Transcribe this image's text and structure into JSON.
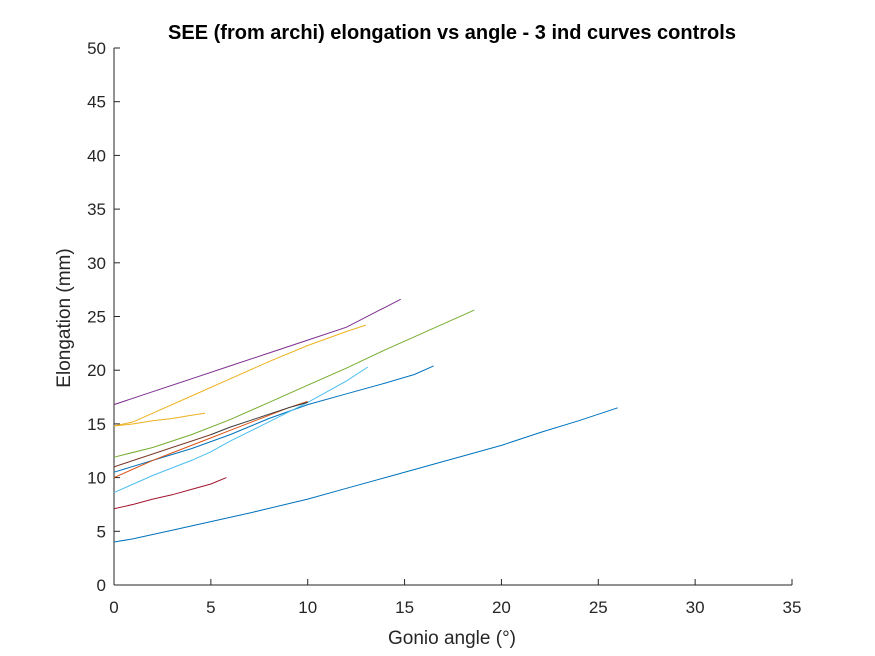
{
  "chart_data": {
    "type": "line",
    "title": "SEE (from archi) elongation vs angle - 3 ind curves controls",
    "xlabel": "Gonio angle (°)",
    "ylabel": "Elongation (mm)",
    "xlim": [
      0,
      35
    ],
    "ylim": [
      0,
      50
    ],
    "xticks": [
      "0",
      "5",
      "10",
      "15",
      "20",
      "25",
      "30",
      "35"
    ],
    "yticks": [
      "0",
      "5",
      "10",
      "15",
      "20",
      "25",
      "30",
      "35",
      "40",
      "45",
      "50"
    ],
    "grid": false,
    "series": [
      {
        "color": "#0072BD",
        "x": [
          0,
          1,
          2,
          3,
          5,
          7,
          10,
          12,
          14,
          16,
          18,
          20,
          22,
          24,
          26
        ],
        "y": [
          4.0,
          4.3,
          4.7,
          5.1,
          5.9,
          6.7,
          8.0,
          9.0,
          10.0,
          11.0,
          12.0,
          13.0,
          14.2,
          15.3,
          16.5
        ]
      },
      {
        "color": "#0072BD",
        "x": [
          0,
          2,
          4,
          6,
          8,
          10,
          12,
          14,
          15.5,
          16.5
        ],
        "y": [
          10.5,
          11.6,
          12.7,
          14.0,
          15.5,
          16.8,
          17.8,
          18.8,
          19.6,
          20.4
        ]
      },
      {
        "color": "#D95319",
        "x": [
          0,
          1,
          2,
          3,
          4,
          5,
          6,
          7,
          8,
          9,
          10
        ],
        "y": [
          10.0,
          10.8,
          11.6,
          12.3,
          13.0,
          13.7,
          14.4,
          15.1,
          15.8,
          16.5,
          17.1
        ]
      },
      {
        "color": "#EDB120",
        "x": [
          0,
          1,
          2,
          4,
          6,
          8,
          10,
          12,
          13
        ],
        "y": [
          14.8,
          15.2,
          16.0,
          17.6,
          19.2,
          20.8,
          22.3,
          23.6,
          24.2
        ]
      },
      {
        "color": "#EDB120",
        "x": [
          0,
          1,
          2,
          3,
          4,
          4.7
        ],
        "y": [
          14.8,
          15.0,
          15.3,
          15.5,
          15.8,
          16.0
        ]
      },
      {
        "color": "#7E2F8E",
        "x": [
          0,
          2,
          4,
          6,
          8,
          10,
          12,
          13.5,
          14.8
        ],
        "y": [
          16.8,
          18.0,
          19.2,
          20.4,
          21.6,
          22.8,
          24.0,
          25.4,
          26.6
        ]
      },
      {
        "color": "#77AC30",
        "x": [
          0,
          2,
          4,
          6,
          8,
          10,
          12,
          14,
          16,
          18.6
        ],
        "y": [
          11.9,
          12.8,
          14.0,
          15.4,
          17.0,
          18.6,
          20.2,
          21.9,
          23.5,
          25.6
        ]
      },
      {
        "color": "#4DBEEE",
        "x": [
          0,
          1,
          2,
          3,
          4,
          5,
          6,
          8,
          10,
          12,
          13.1
        ],
        "y": [
          8.6,
          9.4,
          10.2,
          10.9,
          11.6,
          12.4,
          13.4,
          15.2,
          17.0,
          19.0,
          20.3
        ]
      },
      {
        "color": "#A2142F",
        "x": [
          0,
          1,
          2,
          3,
          4,
          5,
          5.8
        ],
        "y": [
          7.1,
          7.5,
          8.0,
          8.4,
          8.9,
          9.4,
          10.0
        ]
      },
      {
        "color": "#7B3A2A",
        "x": [
          0,
          1,
          2,
          3,
          4,
          5
        ],
        "y": [
          11.0,
          11.6,
          12.2,
          12.8,
          13.4,
          14.0
        ]
      },
      {
        "color": "#3A3A3A",
        "x": [
          5,
          6,
          7,
          8,
          9,
          10
        ],
        "y": [
          14.0,
          14.7,
          15.3,
          15.9,
          16.5,
          17.0
        ]
      }
    ]
  }
}
